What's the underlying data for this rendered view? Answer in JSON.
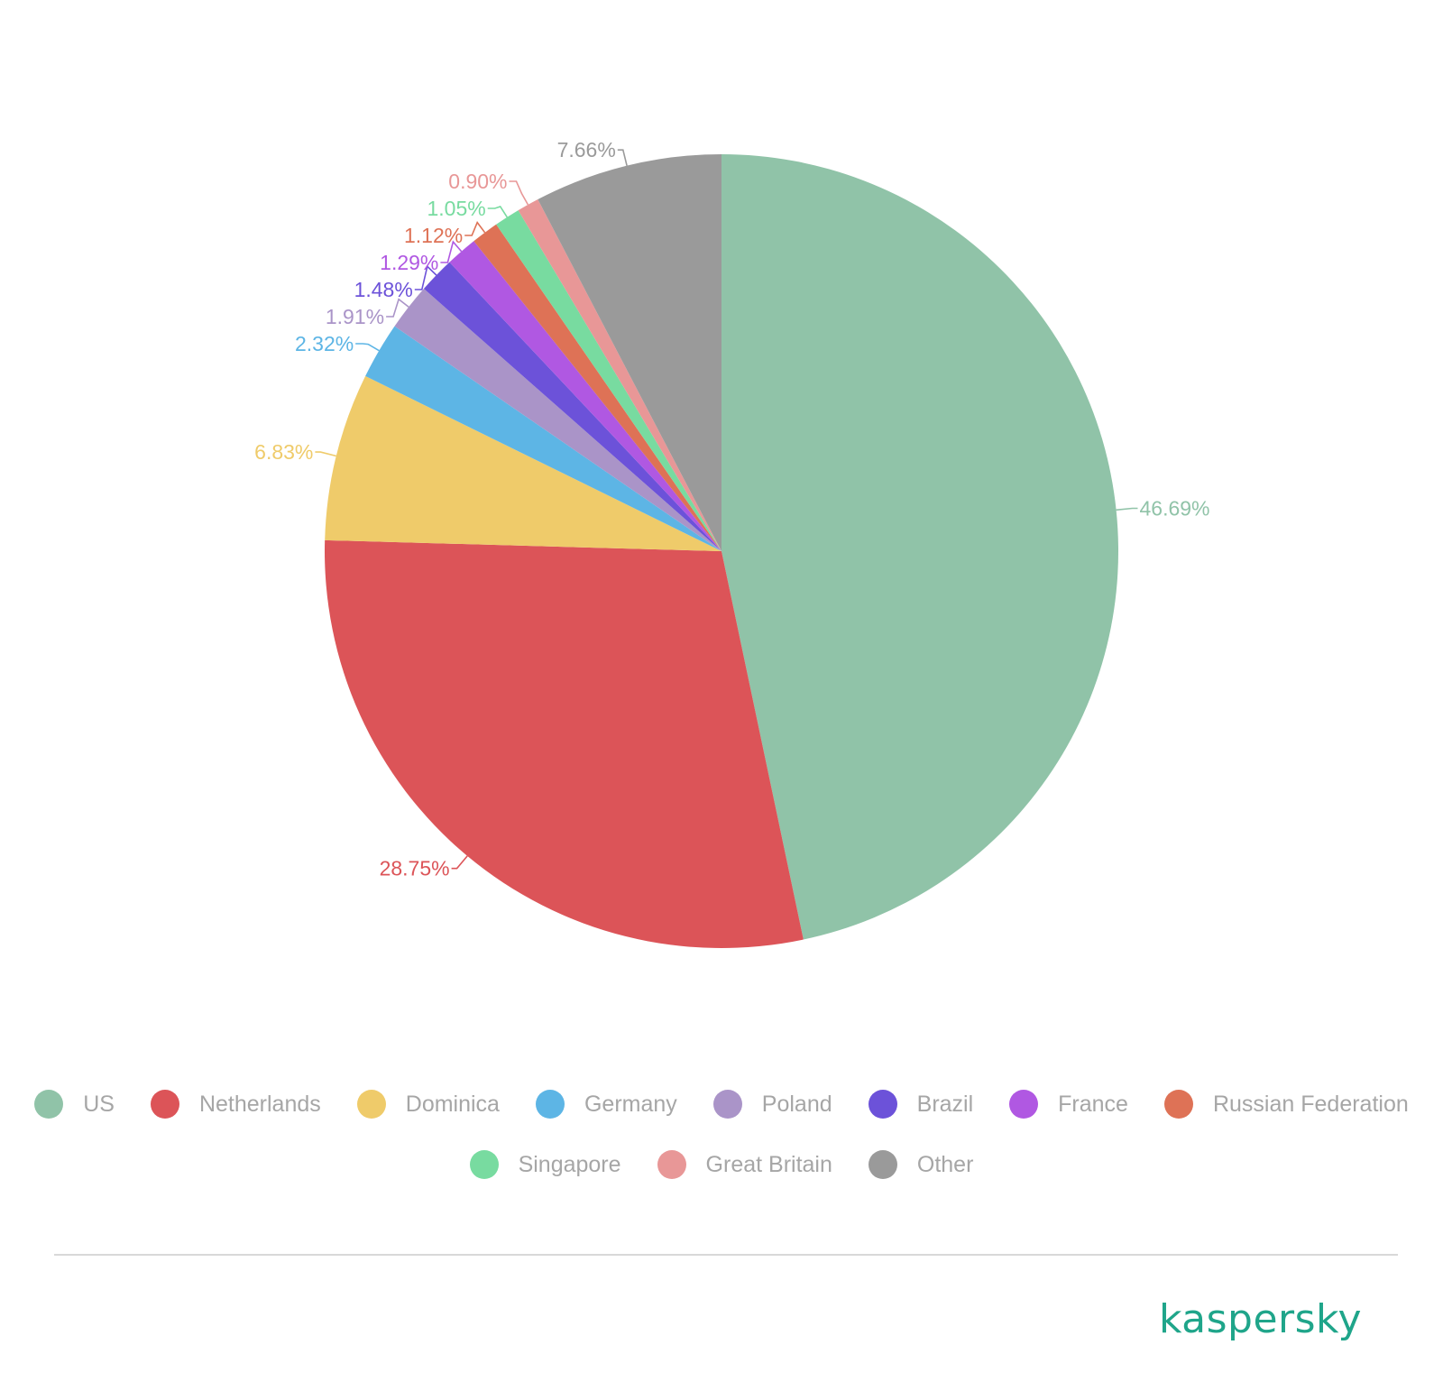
{
  "chart_data": {
    "type": "pie",
    "start": "top",
    "direction": "clockwise",
    "slices": [
      {
        "name": "US",
        "value": 46.69,
        "label": "46.69%",
        "color": "#90c3a8"
      },
      {
        "name": "Netherlands",
        "value": 28.75,
        "label": "28.75%",
        "color": "#dc5458"
      },
      {
        "name": "Dominica",
        "value": 6.83,
        "label": "6.83%",
        "color": "#efcb6a"
      },
      {
        "name": "Germany",
        "value": 2.32,
        "label": "2.32%",
        "color": "#5db5e5"
      },
      {
        "name": "Poland",
        "value": 1.91,
        "label": "1.91%",
        "color": "#aa94c8"
      },
      {
        "name": "Brazil",
        "value": 1.48,
        "label": "1.48%",
        "color": "#6c52d9"
      },
      {
        "name": "France",
        "value": 1.29,
        "label": "1.29%",
        "color": "#b058e2"
      },
      {
        "name": "Russian Federation",
        "value": 1.12,
        "label": "1.12%",
        "color": "#de7256"
      },
      {
        "name": "Singapore",
        "value": 1.05,
        "label": "1.05%",
        "color": "#78dba0"
      },
      {
        "name": "Great Britain",
        "value": 0.9,
        "label": "0.90%",
        "color": "#e89797"
      },
      {
        "name": "Other",
        "value": 7.66,
        "label": "7.66%",
        "color": "#9a9a9a"
      }
    ],
    "legend_position": "bottom"
  },
  "brand": {
    "logo_text": "kaspersky",
    "color": "#1fa58a"
  }
}
